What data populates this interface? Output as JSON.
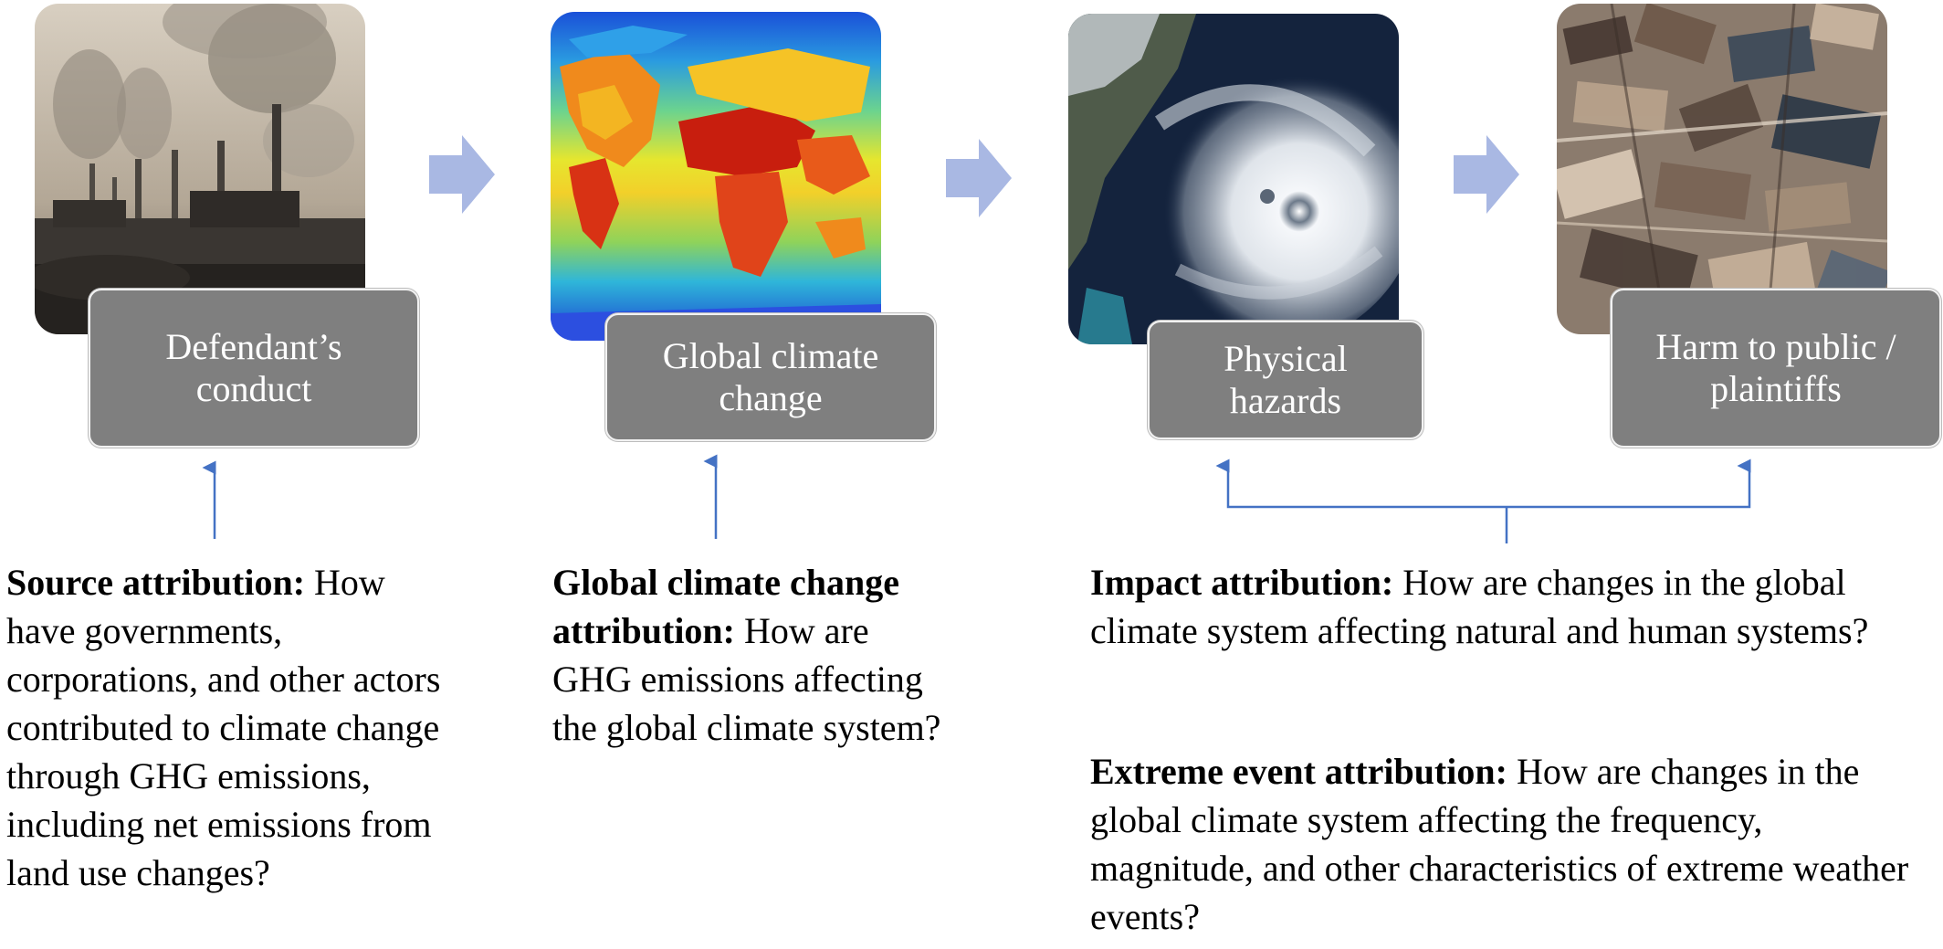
{
  "stages": [
    {
      "label": "Defendant’s conduct",
      "image": "factory-smokestacks-photo"
    },
    {
      "label": "Global climate change",
      "image": "global-temperature-map"
    },
    {
      "label": "Physical hazards",
      "image": "hurricane-satellite-photo"
    },
    {
      "label": "Harm to public / plaintiffs",
      "image": "storm-damage-photo"
    }
  ],
  "attributions": {
    "source": {
      "title": "Source attribution:",
      "text": " How have governments, corporations, and other actors contributed to climate change through GHG emissions, including net emissions from land use changes?"
    },
    "global": {
      "title": "Global climate change attribution:",
      "text": " How are GHG emissions affecting the global climate system?"
    },
    "impact": {
      "title": "Impact attribution:",
      "text": " How are changes in the global climate system affecting natural and human systems?"
    },
    "extreme": {
      "title": "Extreme event attribution:",
      "text": " How are changes in the global climate system affecting the frequency, magnitude, and other characteristics of extreme weather events?"
    }
  },
  "colors": {
    "label_fill": "#7f7f7f",
    "flow_arrow": "#a9b8e3",
    "connector": "#4472c4"
  }
}
